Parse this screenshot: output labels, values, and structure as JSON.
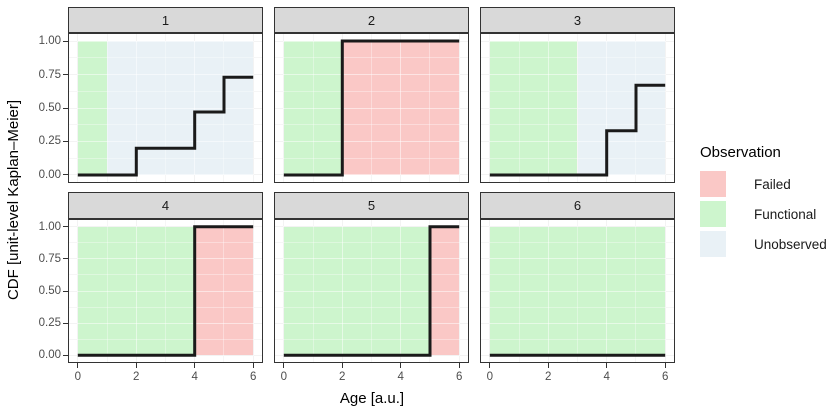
{
  "chart_data": {
    "type": "line",
    "step": true,
    "xlabel": "Age [a.u.]",
    "ylabel": "CDF [unit-level Kaplan–Meier]",
    "xlim": [
      -0.3,
      6.3
    ],
    "ylim": [
      -0.0525,
      1.0525
    ],
    "x_ticks": [
      0,
      2,
      4,
      6
    ],
    "x_tick_labels": [
      "0",
      "2",
      "4",
      "6"
    ],
    "x_minor_gridlines": [
      1,
      3,
      5
    ],
    "y_ticks": [
      0,
      0.25,
      0.5,
      0.75,
      1
    ],
    "y_tick_labels": [
      "0.00",
      "0.25",
      "0.50",
      "0.75",
      "1.00"
    ],
    "y_minor_gridlines": [
      0.125,
      0.375,
      0.625,
      0.875
    ],
    "grid": true,
    "legend": {
      "title": "Observation",
      "position": "right",
      "items": [
        {
          "label": "Failed",
          "color": "#FAC8C6"
        },
        {
          "label": "Functional",
          "color": "#CDF5CD"
        },
        {
          "label": "Unobserved",
          "color": "#E9F1F6"
        }
      ]
    },
    "style": {
      "strip_fill": "#D9D9D9",
      "panel_border_color": "#333333",
      "panel_background": "#FFFFFF",
      "gridline_major_color": "#E6E6E6",
      "gridline_minor_color": "#F2F2F2",
      "tick_color": "#333333",
      "tick_label_color": "#4D4D4D",
      "step_line_color": "#1A1A1A"
    },
    "facets": [
      {
        "label": "1",
        "regions": [
          {
            "observation": "Functional",
            "x_start": 0,
            "x_end": 1
          },
          {
            "observation": "Unobserved",
            "x_start": 1,
            "x_end": 6
          }
        ],
        "step_points": [
          [
            0,
            0
          ],
          [
            2,
            0
          ],
          [
            2,
            0.2
          ],
          [
            4,
            0.2
          ],
          [
            4,
            0.47
          ],
          [
            5,
            0.47
          ],
          [
            5,
            0.73
          ],
          [
            6,
            0.73
          ]
        ]
      },
      {
        "label": "2",
        "regions": [
          {
            "observation": "Functional",
            "x_start": 0,
            "x_end": 2
          },
          {
            "observation": "Failed",
            "x_start": 2,
            "x_end": 6
          }
        ],
        "step_points": [
          [
            0,
            0
          ],
          [
            2,
            0
          ],
          [
            2,
            1
          ],
          [
            6,
            1
          ]
        ]
      },
      {
        "label": "3",
        "regions": [
          {
            "observation": "Functional",
            "x_start": 0,
            "x_end": 3
          },
          {
            "observation": "Unobserved",
            "x_start": 3,
            "x_end": 6
          }
        ],
        "step_points": [
          [
            0,
            0
          ],
          [
            4,
            0
          ],
          [
            4,
            0.33
          ],
          [
            5,
            0.33
          ],
          [
            5,
            0.67
          ],
          [
            6,
            0.67
          ]
        ]
      },
      {
        "label": "4",
        "regions": [
          {
            "observation": "Functional",
            "x_start": 0,
            "x_end": 4
          },
          {
            "observation": "Failed",
            "x_start": 4,
            "x_end": 6
          }
        ],
        "step_points": [
          [
            0,
            0
          ],
          [
            4,
            0
          ],
          [
            4,
            1
          ],
          [
            6,
            1
          ]
        ]
      },
      {
        "label": "5",
        "regions": [
          {
            "observation": "Functional",
            "x_start": 0,
            "x_end": 5
          },
          {
            "observation": "Failed",
            "x_start": 5,
            "x_end": 6
          }
        ],
        "step_points": [
          [
            0,
            0
          ],
          [
            5,
            0
          ],
          [
            5,
            1
          ],
          [
            6,
            1
          ]
        ]
      },
      {
        "label": "6",
        "regions": [
          {
            "observation": "Functional",
            "x_start": 0,
            "x_end": 6
          }
        ],
        "step_points": [
          [
            0,
            0
          ],
          [
            6,
            0
          ]
        ]
      }
    ]
  }
}
